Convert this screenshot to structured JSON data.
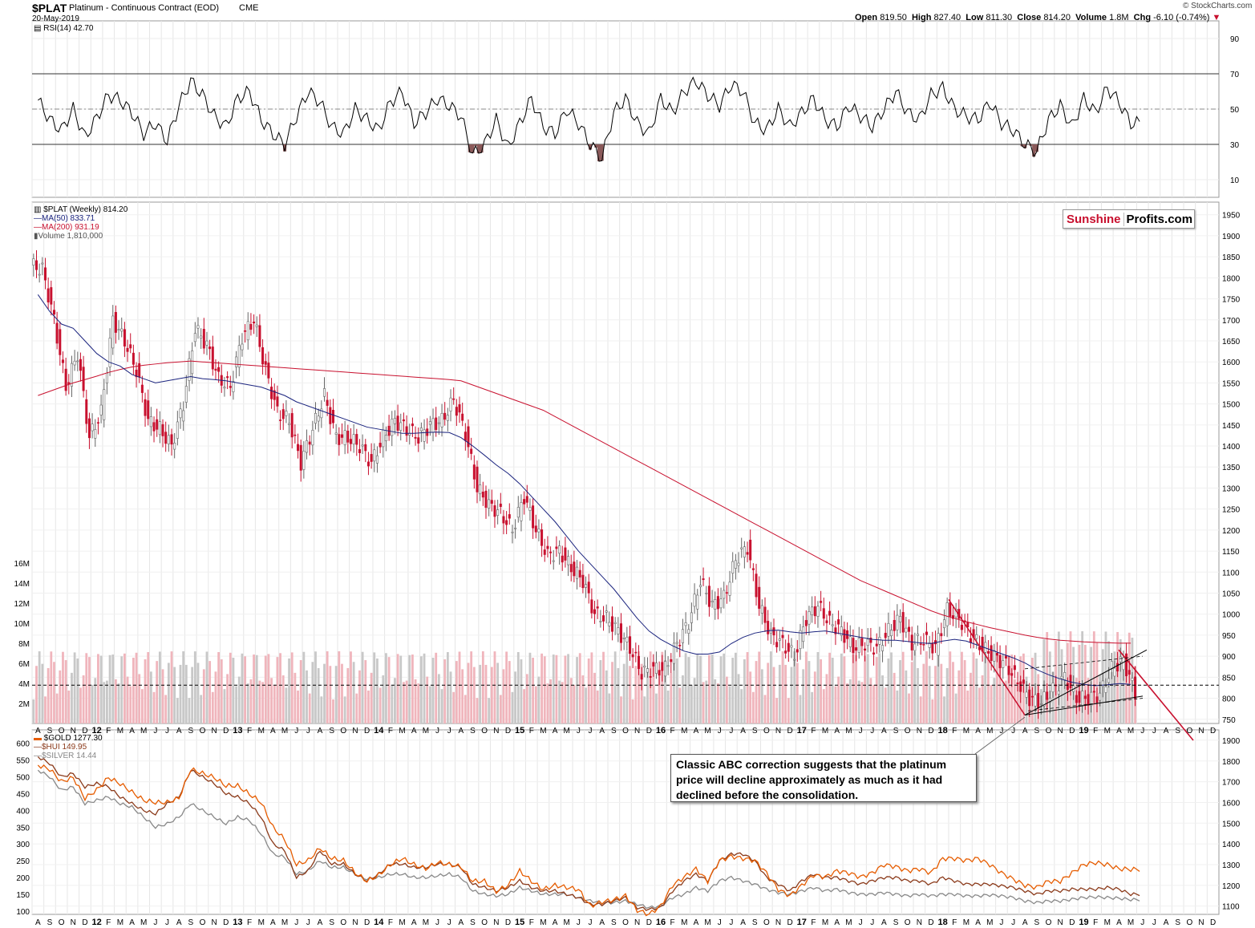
{
  "header": {
    "symbol": "$PLAT",
    "description": "Platinum - Continuous Contract (EOD)",
    "exchange": "CME",
    "date": "20-May-2019",
    "copyright": "© StockCharts.com",
    "quote": {
      "open_label": "Open",
      "open": "819.50",
      "high_label": "High",
      "high": "827.40",
      "low_label": "Low",
      "low": "811.30",
      "close_label": "Close",
      "close": "814.20",
      "volume_label": "Volume",
      "volume": "1.8M",
      "chg_label": "Chg",
      "chg": "-6.10 (-0.74%)"
    }
  },
  "brand": {
    "part1": "Sunshine",
    "part2": "Profits.com"
  },
  "annotation": "Classic ABC correction suggests that the platinum price will decline approximately as much as it had declined before the consolidation.",
  "colors": {
    "up": "#888888",
    "down": "#c8102e",
    "ma50": "#1a237e",
    "ma200": "#c8102e",
    "gold": "#e65c00",
    "hui": "#8b3a1a",
    "silver": "#888888",
    "vol_up": "#c8c8c8",
    "vol_down": "#f0b5bc"
  },
  "chart_data": [
    {
      "type": "line",
      "panel": "RSI",
      "legend": "RSI(14) 42.70",
      "ylim": [
        0,
        100
      ],
      "y_ticks": [
        10,
        30,
        50,
        70,
        90
      ],
      "levels": [
        30,
        50,
        70
      ],
      "x": [
        "2011-08",
        "2011-09",
        "2011-10",
        "2011-11",
        "2011-12",
        "2012-01",
        "2012-02",
        "2012-03",
        "2012-04",
        "2012-05",
        "2012-06",
        "2012-07",
        "2012-08",
        "2012-09",
        "2012-10",
        "2012-11",
        "2012-12",
        "2013-01",
        "2013-02",
        "2013-03",
        "2013-04",
        "2013-05",
        "2013-06",
        "2013-07",
        "2013-08",
        "2013-09",
        "2013-10",
        "2013-11",
        "2013-12",
        "2014-01",
        "2014-02",
        "2014-03",
        "2014-04",
        "2014-05",
        "2014-06",
        "2014-07",
        "2014-08",
        "2014-09",
        "2014-10",
        "2014-11",
        "2014-12",
        "2015-01",
        "2015-02",
        "2015-03",
        "2015-04",
        "2015-05",
        "2015-06",
        "2015-07",
        "2015-08",
        "2015-09",
        "2015-10",
        "2015-11",
        "2015-12",
        "2016-01",
        "2016-02",
        "2016-03",
        "2016-04",
        "2016-05",
        "2016-06",
        "2016-07",
        "2016-08",
        "2016-09",
        "2016-10",
        "2016-11",
        "2016-12",
        "2017-01",
        "2017-02",
        "2017-03",
        "2017-04",
        "2017-05",
        "2017-06",
        "2017-07",
        "2017-08",
        "2017-09",
        "2017-10",
        "2017-11",
        "2017-12",
        "2018-01",
        "2018-02",
        "2018-03",
        "2018-04",
        "2018-05",
        "2018-06",
        "2018-07",
        "2018-08",
        "2018-09",
        "2018-10",
        "2018-11",
        "2018-12",
        "2019-01",
        "2019-02",
        "2019-03",
        "2019-04",
        "2019-05"
      ],
      "values": [
        55,
        44,
        38,
        50,
        34,
        45,
        58,
        55,
        48,
        36,
        42,
        32,
        52,
        66,
        58,
        46,
        40,
        56,
        60,
        44,
        36,
        30,
        46,
        60,
        54,
        40,
        36,
        50,
        44,
        38,
        54,
        60,
        42,
        48,
        56,
        52,
        46,
        24,
        30,
        44,
        28,
        42,
        56,
        40,
        36,
        50,
        42,
        30,
        22,
        48,
        56,
        42,
        36,
        56,
        48,
        60,
        66,
        58,
        52,
        64,
        60,
        42,
        38,
        50,
        40,
        48,
        56,
        44,
        40,
        52,
        46,
        40,
        50,
        60,
        48,
        44,
        58,
        62,
        50,
        46,
        44,
        54,
        42,
        38,
        30,
        26,
        44,
        52,
        40,
        56,
        48,
        62,
        54,
        42
      ],
      "oversold_shading": true
    },
    {
      "type": "candlestick",
      "panel": "Price",
      "legend": [
        "$PLAT (Weekly) 814.20",
        "MA(50) 833.71",
        "MA(200) 931.19",
        "Volume 1,810,000"
      ],
      "ylim": [
        740,
        1980
      ],
      "y_ticks": [
        750,
        800,
        850,
        900,
        950,
        1000,
        1050,
        1100,
        1150,
        1200,
        1250,
        1300,
        1350,
        1400,
        1450,
        1500,
        1550,
        1600,
        1650,
        1700,
        1750,
        1800,
        1850,
        1900,
        1950
      ],
      "volume_ticks": [
        "2M",
        "4M",
        "6M",
        "8M",
        "10M",
        "12M",
        "14M",
        "16M"
      ],
      "x": [
        "2011-08",
        "2011-09",
        "2011-10",
        "2011-11",
        "2011-12",
        "2012-01",
        "2012-02",
        "2012-03",
        "2012-04",
        "2012-05",
        "2012-06",
        "2012-07",
        "2012-08",
        "2012-09",
        "2012-10",
        "2012-11",
        "2012-12",
        "2013-01",
        "2013-02",
        "2013-03",
        "2013-04",
        "2013-05",
        "2013-06",
        "2013-07",
        "2013-08",
        "2013-09",
        "2013-10",
        "2013-11",
        "2013-12",
        "2014-01",
        "2014-02",
        "2014-03",
        "2014-04",
        "2014-05",
        "2014-06",
        "2014-07",
        "2014-08",
        "2014-09",
        "2014-10",
        "2014-11",
        "2014-12",
        "2015-01",
        "2015-02",
        "2015-03",
        "2015-04",
        "2015-05",
        "2015-06",
        "2015-07",
        "2015-08",
        "2015-09",
        "2015-10",
        "2015-11",
        "2015-12",
        "2016-01",
        "2016-02",
        "2016-03",
        "2016-04",
        "2016-05",
        "2016-06",
        "2016-07",
        "2016-08",
        "2016-09",
        "2016-10",
        "2016-11",
        "2016-12",
        "2017-01",
        "2017-02",
        "2017-03",
        "2017-04",
        "2017-05",
        "2017-06",
        "2017-07",
        "2017-08",
        "2017-09",
        "2017-10",
        "2017-11",
        "2017-12",
        "2018-01",
        "2018-02",
        "2018-03",
        "2018-04",
        "2018-05",
        "2018-06",
        "2018-07",
        "2018-08",
        "2018-09",
        "2018-10",
        "2018-11",
        "2018-12",
        "2019-01",
        "2019-02",
        "2019-03",
        "2019-04",
        "2019-05"
      ],
      "close": [
        1820,
        1700,
        1540,
        1620,
        1420,
        1480,
        1700,
        1650,
        1580,
        1460,
        1440,
        1400,
        1500,
        1680,
        1640,
        1560,
        1540,
        1660,
        1700,
        1580,
        1480,
        1460,
        1360,
        1440,
        1520,
        1420,
        1420,
        1400,
        1360,
        1420,
        1460,
        1440,
        1420,
        1450,
        1460,
        1510,
        1430,
        1300,
        1260,
        1240,
        1200,
        1280,
        1200,
        1140,
        1150,
        1110,
        1080,
        1000,
        990,
        960,
        920,
        860,
        870,
        870,
        930,
        980,
        1080,
        1020,
        1040,
        1130,
        1160,
        1020,
        950,
        930,
        900,
        990,
        1020,
        980,
        960,
        920,
        930,
        920,
        960,
        990,
        930,
        940,
        920,
        1010,
        990,
        950,
        920,
        900,
        880,
        840,
        800,
        790,
        820,
        850,
        800,
        800,
        810,
        870,
        890,
        814
      ],
      "ma50": [
        1760,
        1720,
        1690,
        1680,
        1650,
        1620,
        1600,
        1590,
        1570,
        1560,
        1550,
        1555,
        1560,
        1565,
        1560,
        1558,
        1555,
        1550,
        1545,
        1540,
        1530,
        1520,
        1505,
        1495,
        1485,
        1475,
        1465,
        1455,
        1445,
        1440,
        1435,
        1430,
        1430,
        1432,
        1433,
        1432,
        1420,
        1400,
        1378,
        1355,
        1335,
        1310,
        1280,
        1250,
        1220,
        1185,
        1150,
        1120,
        1090,
        1060,
        1025,
        990,
        960,
        940,
        925,
        912,
        905,
        905,
        910,
        930,
        945,
        955,
        960,
        962,
        958,
        955,
        958,
        960,
        955,
        950,
        945,
        940,
        938,
        938,
        935,
        932,
        930,
        936,
        940,
        936,
        926,
        916,
        906,
        896,
        884,
        868,
        856,
        846,
        838,
        833,
        830,
        832,
        835,
        833
      ],
      "ma200": [
        1520,
        1530,
        1540,
        1550,
        1558,
        1566,
        1575,
        1582,
        1588,
        1592,
        1595,
        1598,
        1600,
        1602,
        1600,
        1598,
        1596,
        1594,
        1592,
        1590,
        1588,
        1586,
        1584,
        1582,
        1580,
        1578,
        1576,
        1574,
        1572,
        1570,
        1568,
        1566,
        1564,
        1562,
        1560,
        1558,
        1555,
        1545,
        1535,
        1525,
        1515,
        1505,
        1495,
        1485,
        1470,
        1455,
        1440,
        1425,
        1410,
        1395,
        1380,
        1365,
        1350,
        1335,
        1320,
        1305,
        1290,
        1275,
        1260,
        1245,
        1230,
        1215,
        1200,
        1185,
        1170,
        1155,
        1140,
        1125,
        1110,
        1095,
        1080,
        1068,
        1056,
        1044,
        1032,
        1020,
        1008,
        998,
        990,
        982,
        975,
        968,
        962,
        956,
        950,
        945,
        941,
        938,
        936,
        934,
        933,
        932,
        931,
        931
      ]
    },
    {
      "type": "line",
      "panel": "Comparison",
      "series": [
        {
          "name": "$GOLD 1277.30",
          "axis": "right",
          "ylim": [
            1060,
            1950
          ],
          "values": [
            1780,
            1760,
            1700,
            1720,
            1620,
            1660,
            1720,
            1690,
            1650,
            1610,
            1600,
            1600,
            1620,
            1760,
            1740,
            1720,
            1680,
            1680,
            1640,
            1600,
            1480,
            1420,
            1300,
            1320,
            1380,
            1330,
            1320,
            1260,
            1220,
            1250,
            1300,
            1330,
            1300,
            1280,
            1310,
            1300,
            1290,
            1220,
            1220,
            1170,
            1200,
            1270,
            1220,
            1180,
            1200,
            1190,
            1180,
            1100,
            1120,
            1130,
            1150,
            1080,
            1060,
            1100,
            1200,
            1240,
            1280,
            1220,
            1320,
            1340,
            1330,
            1320,
            1260,
            1180,
            1150,
            1200,
            1250,
            1240,
            1270,
            1260,
            1240,
            1260,
            1300,
            1290,
            1270,
            1280,
            1260,
            1330,
            1330,
            1320,
            1330,
            1300,
            1260,
            1230,
            1200,
            1190,
            1220,
            1220,
            1260,
            1300,
            1310,
            1300,
            1280,
            1277.3
          ]
        },
        {
          "name": "$HUI 149.95",
          "axis": "left",
          "ylim": [
            90,
            640
          ],
          "values": [
            560,
            540,
            500,
            510,
            470,
            480,
            470,
            440,
            420,
            400,
            390,
            420,
            440,
            520,
            500,
            480,
            450,
            440,
            420,
            380,
            300,
            280,
            200,
            220,
            280,
            240,
            240,
            210,
            190,
            210,
            240,
            240,
            230,
            230,
            240,
            240,
            230,
            180,
            170,
            160,
            170,
            190,
            170,
            160,
            160,
            150,
            140,
            120,
            120,
            130,
            140,
            110,
            105,
            110,
            160,
            190,
            210,
            190,
            250,
            270,
            270,
            250,
            200,
            180,
            160,
            190,
            210,
            200,
            200,
            190,
            180,
            190,
            200,
            200,
            190,
            190,
            180,
            200,
            190,
            180,
            180,
            180,
            175,
            170,
            160,
            150,
            160,
            160,
            165,
            165,
            165,
            170,
            165,
            150
          ]
        },
        {
          "name": "$SILVER 14.44",
          "axis": "left",
          "ylim": [
            90,
            640
          ],
          "values": [
            520,
            500,
            460,
            470,
            420,
            430,
            440,
            420,
            410,
            380,
            350,
            360,
            380,
            420,
            400,
            380,
            360,
            380,
            370,
            330,
            270,
            260,
            210,
            220,
            250,
            230,
            230,
            210,
            195,
            200,
            210,
            210,
            200,
            200,
            205,
            210,
            200,
            160,
            150,
            145,
            150,
            170,
            160,
            150,
            150,
            150,
            140,
            130,
            125,
            125,
            130,
            120,
            110,
            115,
            140,
            150,
            170,
            160,
            190,
            200,
            190,
            180,
            165,
            155,
            150,
            160,
            170,
            160,
            165,
            155,
            150,
            150,
            155,
            150,
            145,
            150,
            145,
            150,
            150,
            145,
            145,
            148,
            145,
            140,
            130,
            125,
            130,
            130,
            135,
            140,
            142,
            140,
            138,
            134
          ]
        }
      ],
      "x": [
        "2011-08",
        "2011-09",
        "2011-10",
        "2011-11",
        "2011-12",
        "2012-01",
        "2012-02",
        "2012-03",
        "2012-04",
        "2012-05",
        "2012-06",
        "2012-07",
        "2012-08",
        "2012-09",
        "2012-10",
        "2012-11",
        "2012-12",
        "2013-01",
        "2013-02",
        "2013-03",
        "2013-04",
        "2013-05",
        "2013-06",
        "2013-07",
        "2013-08",
        "2013-09",
        "2013-10",
        "2013-11",
        "2013-12",
        "2014-01",
        "2014-02",
        "2014-03",
        "2014-04",
        "2014-05",
        "2014-06",
        "2014-07",
        "2014-08",
        "2014-09",
        "2014-10",
        "2014-11",
        "2014-12",
        "2015-01",
        "2015-02",
        "2015-03",
        "2015-04",
        "2015-05",
        "2015-06",
        "2015-07",
        "2015-08",
        "2015-09",
        "2015-10",
        "2015-11",
        "2015-12",
        "2016-01",
        "2016-02",
        "2016-03",
        "2016-04",
        "2016-05",
        "2016-06",
        "2016-07",
        "2016-08",
        "2016-09",
        "2016-10",
        "2016-11",
        "2016-12",
        "2017-01",
        "2017-02",
        "2017-03",
        "2017-04",
        "2017-05",
        "2017-06",
        "2017-07",
        "2017-08",
        "2017-09",
        "2017-10",
        "2017-11",
        "2017-12",
        "2018-01",
        "2018-02",
        "2018-03",
        "2018-04",
        "2018-05",
        "2018-06",
        "2018-07",
        "2018-08",
        "2018-09",
        "2018-10",
        "2018-11",
        "2018-12",
        "2019-01",
        "2019-02",
        "2019-03",
        "2019-04",
        "2019-05"
      ],
      "left_ticks": [
        100,
        150,
        200,
        250,
        300,
        350,
        400,
        450,
        500,
        550,
        600
      ],
      "right_ticks": [
        1100,
        1200,
        1300,
        1400,
        1500,
        1600,
        1700,
        1800,
        1900
      ]
    }
  ],
  "x_axis": {
    "labels": [
      "A",
      "S",
      "O",
      "N",
      "D",
      "12",
      "F",
      "M",
      "A",
      "M",
      "J",
      "J",
      "A",
      "S",
      "O",
      "N",
      "D",
      "13",
      "F",
      "M",
      "A",
      "M",
      "J",
      "J",
      "A",
      "S",
      "O",
      "N",
      "D",
      "14",
      "F",
      "M",
      "A",
      "M",
      "J",
      "J",
      "A",
      "S",
      "O",
      "N",
      "D",
      "15",
      "F",
      "M",
      "A",
      "M",
      "J",
      "J",
      "A",
      "S",
      "O",
      "N",
      "D",
      "16",
      "F",
      "M",
      "A",
      "M",
      "J",
      "J",
      "A",
      "S",
      "O",
      "N",
      "D",
      "17",
      "F",
      "M",
      "A",
      "M",
      "J",
      "J",
      "A",
      "S",
      "O",
      "N",
      "D",
      "18",
      "F",
      "M",
      "A",
      "M",
      "J",
      "J",
      "A",
      "S",
      "O",
      "N",
      "D",
      "19",
      "F",
      "M",
      "A",
      "M",
      "J",
      "J",
      "A",
      "S",
      "O",
      "N",
      "D"
    ],
    "year_labels": [
      "12",
      "13",
      "14",
      "15",
      "16",
      "17",
      "18",
      "19"
    ]
  }
}
